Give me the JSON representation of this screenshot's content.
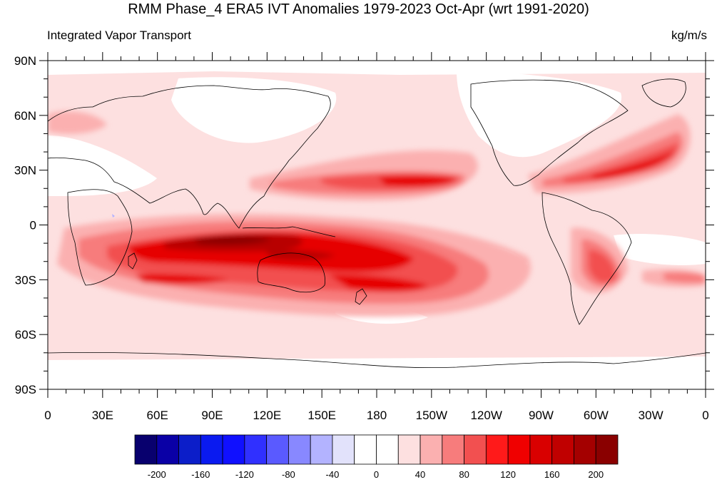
{
  "title": "RMM Phase_4 ERA5 IVT Anomalies 1979-2023 Oct-Apr (wrt 1991-2020)",
  "left_string": "Integrated Vapor Transport",
  "right_string": "kg/m/s",
  "lat_labels": [
    "90N",
    "60N",
    "30N",
    "0",
    "30S",
    "60S",
    "90S"
  ],
  "lon_labels": [
    "0",
    "30E",
    "60E",
    "90E",
    "120E",
    "150E",
    "180",
    "150W",
    "120W",
    "90W",
    "60W",
    "30W",
    "0"
  ],
  "colorbar": {
    "colors": [
      "#08006e",
      "#0a00a6",
      "#0c1ec9",
      "#0a1af0",
      "#1010ff",
      "#3030ff",
      "#5a5aff",
      "#8888ff",
      "#b3b3ff",
      "#e2e2fb",
      "#ffffff",
      "#ffffff",
      "#fde0e0",
      "#fbb0b0",
      "#f77c7c",
      "#f25050",
      "#ff1a1a",
      "#f00000",
      "#d90000",
      "#c00000",
      "#a40000",
      "#8a0000"
    ],
    "tick_labels": [
      "-200",
      "-160",
      "-120",
      "-80",
      "-40",
      "0",
      "40",
      "80",
      "120",
      "160",
      "200"
    ]
  },
  "map_colors": {
    "c1": "#fde0e0",
    "c2": "#fbb0b0",
    "c3": "#f77c7c",
    "c4": "#f25050",
    "c5": "#e60000",
    "c6": "#b80000",
    "c7": "#8a0000",
    "blue": "#b3b3ff"
  }
}
